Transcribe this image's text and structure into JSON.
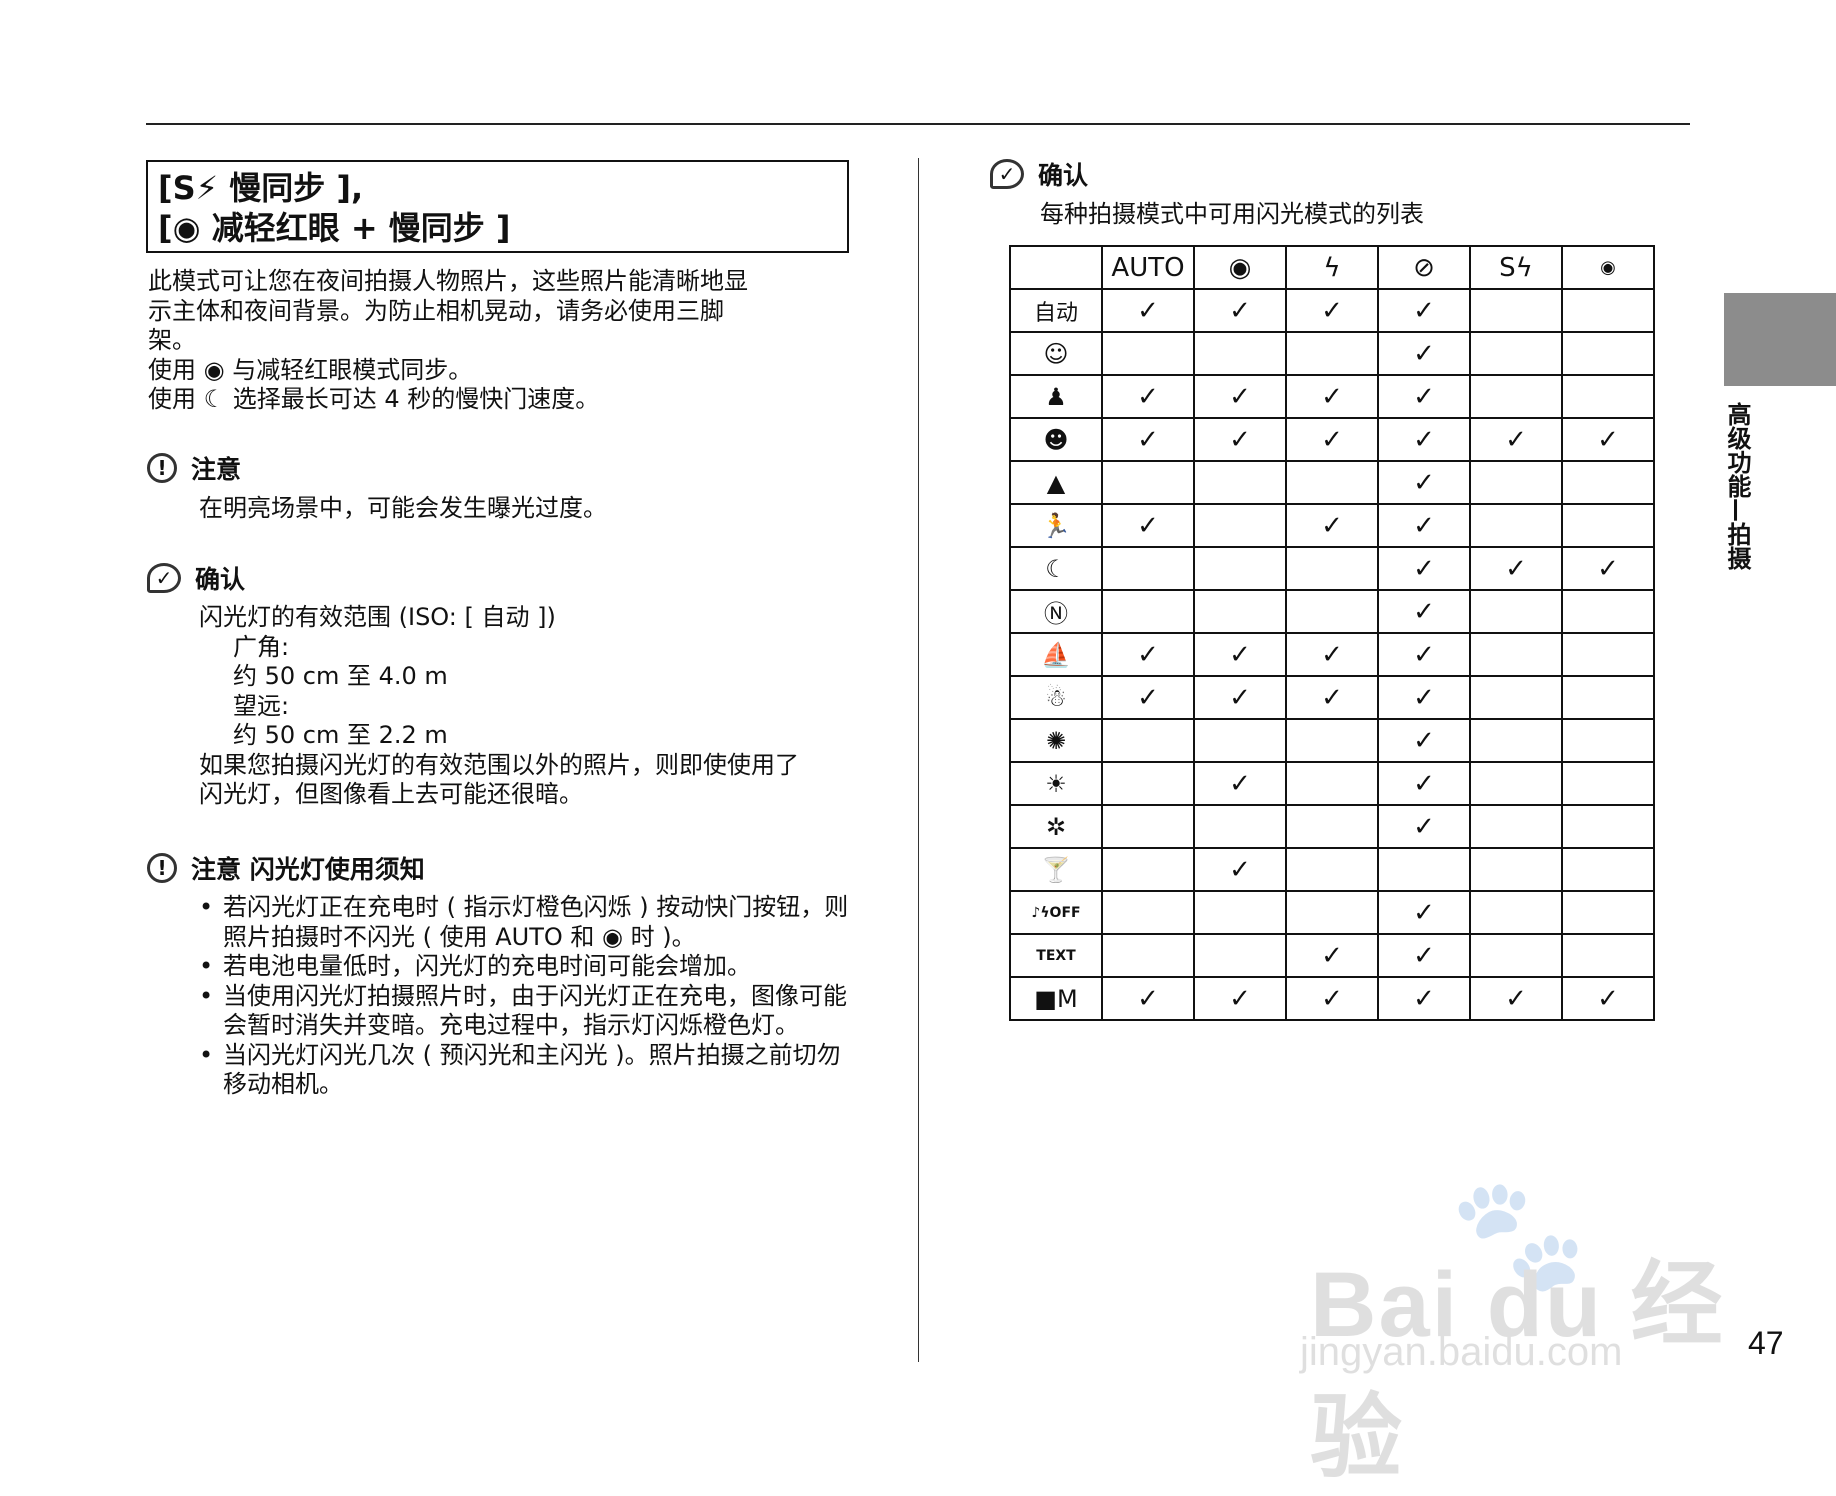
{
  "title": {
    "line1": "[S⚡ 慢同步 ],",
    "line2": "[◉ 减轻红眼 + 慢同步 ]"
  },
  "intro": {
    "para": [
      "此模式可让您在夜间拍摄人物照片，这些照片能清晰地显",
      "示主体和夜间背景。为防止相机晃动，请务必使用三脚",
      "架。"
    ],
    "line_slow": "使用 ◉ 与减轻红眼模式同步。",
    "line_night": "使用 ☾ 选择最长可达 4 秒的慢快门速度。"
  },
  "note1": {
    "icon": "exclamation-circle-icon",
    "mark": "!",
    "title": "注意",
    "text": "在明亮场景中，可能会发生曝光过度。"
  },
  "check1": {
    "icon": "check-bubble-icon",
    "mark": "✓",
    "title": "确认",
    "lines": [
      "闪光灯的有效范围 (ISO: [ 自动 ])",
      "广角:",
      "约 50 cm 至 4.0 m",
      "望远:",
      "约 50 cm 至 2.2 m"
    ],
    "tail": [
      "如果您拍摄闪光灯的有效范围以外的照片，则即使使用了",
      "闪光灯，但图像看上去可能还很暗。"
    ]
  },
  "note2": {
    "icon": "exclamation-circle-icon",
    "mark": "!",
    "title": "注意 闪光灯使用须知",
    "bullets": [
      "若闪光灯正在充电时 ( 指示灯橙色闪烁 ) 按动快门按钮，则照片拍摄时不闪光 ( 使用 AUTO 和 ◉ 时 )。",
      "若电池电量低时，闪光灯的充电时间可能会增加。",
      "当使用闪光灯拍摄照片时，由于闪光灯正在充电，图像可能会暂时消失并变暗。充电过程中，指示灯闪烁橙色灯。",
      "当闪光灯闪光几次 ( 预闪光和主闪光 )。照片拍摄之前切勿移动相机。"
    ]
  },
  "check2": {
    "icon": "check-bubble-icon",
    "mark": "✓",
    "title": "确认",
    "subtitle": "每种拍摄模式中可用闪光模式的列表"
  },
  "flash_table": {
    "check_mark": "✓",
    "columns": [
      {
        "label": "AUTO",
        "icon": "auto-flash"
      },
      {
        "label": "◉",
        "icon": "red-eye-reduction-icon"
      },
      {
        "label": "ϟ",
        "icon": "forced-flash-icon"
      },
      {
        "label": "⊘",
        "icon": "flash-off-icon"
      },
      {
        "label": "Sϟ",
        "icon": "slow-sync-icon"
      },
      {
        "label": "◉",
        "icon": "red-eye-slow-sync-icon"
      }
    ],
    "rows": [
      {
        "label": "自动",
        "icon": "auto-mode",
        "checks": [
          1,
          1,
          1,
          1,
          0,
          0
        ]
      },
      {
        "label": "☺",
        "icon": "baby-face-icon",
        "checks": [
          0,
          0,
          0,
          1,
          0,
          0
        ]
      },
      {
        "label": "♟",
        "icon": "natural-person-icon",
        "checks": [
          1,
          1,
          1,
          1,
          0,
          0
        ]
      },
      {
        "label": "☻",
        "icon": "portrait-icon",
        "checks": [
          1,
          1,
          1,
          1,
          1,
          1
        ]
      },
      {
        "label": "▲",
        "icon": "landscape-icon",
        "checks": [
          0,
          0,
          0,
          1,
          0,
          0
        ]
      },
      {
        "label": "🏃",
        "icon": "sport-icon",
        "checks": [
          1,
          0,
          1,
          1,
          0,
          0
        ]
      },
      {
        "label": "☾",
        "icon": "night-icon",
        "checks": [
          0,
          0,
          0,
          1,
          1,
          1
        ]
      },
      {
        "label": "Ⓝ",
        "icon": "natural-light-icon",
        "checks": [
          0,
          0,
          0,
          1,
          0,
          0
        ]
      },
      {
        "label": "⛵",
        "icon": "beach-icon",
        "checks": [
          1,
          1,
          1,
          1,
          0,
          0
        ]
      },
      {
        "label": "☃",
        "icon": "snow-icon",
        "checks": [
          1,
          1,
          1,
          1,
          0,
          0
        ]
      },
      {
        "label": "✺",
        "icon": "fireworks-icon",
        "checks": [
          0,
          0,
          0,
          1,
          0,
          0
        ]
      },
      {
        "label": "☀",
        "icon": "sunset-icon",
        "checks": [
          0,
          1,
          0,
          1,
          0,
          0
        ]
      },
      {
        "label": "✲",
        "icon": "flower-icon",
        "checks": [
          0,
          0,
          0,
          1,
          0,
          0
        ]
      },
      {
        "label": "🍸",
        "icon": "party-icon",
        "checks": [
          0,
          1,
          0,
          0,
          0,
          0
        ]
      },
      {
        "label": "♪ϟOFF",
        "icon": "museum-icon",
        "checks": [
          0,
          0,
          0,
          1,
          0,
          0
        ]
      },
      {
        "label": "TEXT",
        "icon": "text-mode-icon",
        "checks": [
          0,
          0,
          1,
          1,
          0,
          0
        ]
      },
      {
        "label": "■M",
        "icon": "manual-camera-icon",
        "checks": [
          1,
          1,
          1,
          1,
          1,
          1
        ]
      }
    ]
  },
  "side_tab": {
    "label": "高级功能—拍摄"
  },
  "page_number": "47",
  "watermark": {
    "brand": "Bai du 经验",
    "url": "jingyan.baidu.com"
  }
}
